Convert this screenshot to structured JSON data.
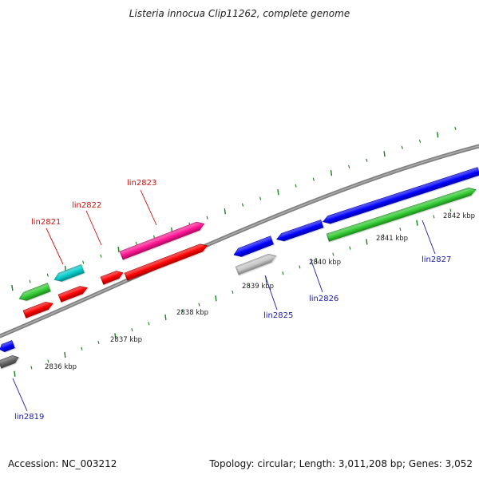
{
  "title": "Listeria innocua Clip11262, complete genome",
  "footer": {
    "accession": "Accession: NC_003212",
    "summary": "Topology: circular; Length: 3,011,208 bp; Genes: 3,052"
  },
  "colors": {
    "backbone": "#808080",
    "tick": "#1b7f1b",
    "tick_label": "#222222",
    "top_label": "#cc1111",
    "bottom_label": "#1a1aa8",
    "red": "#ff0000",
    "pink": "#ff1493",
    "green": "#33cc33",
    "cyan": "#00cccc",
    "blue": "#0000ff",
    "gray": "#666666",
    "light_gray": "#c8c8c8"
  },
  "ticks": [
    {
      "label": "2836 kbp"
    },
    {
      "label": "2837 kbp"
    },
    {
      "label": "2838 kbp"
    },
    {
      "label": "2839 kbp"
    },
    {
      "label": "2840 kbp"
    },
    {
      "label": "2841 kbp"
    },
    {
      "label": "2842 kbp"
    }
  ],
  "gene_labels": [
    {
      "text": "lin2819",
      "strand": "bottom"
    },
    {
      "text": "lin2821",
      "strand": "top"
    },
    {
      "text": "lin2822",
      "strand": "top"
    },
    {
      "text": "lin2823",
      "strand": "top"
    },
    {
      "text": "lin2825",
      "strand": "bottom"
    },
    {
      "text": "lin2826",
      "strand": "bottom"
    },
    {
      "text": "lin2827",
      "strand": "bottom"
    }
  ]
}
